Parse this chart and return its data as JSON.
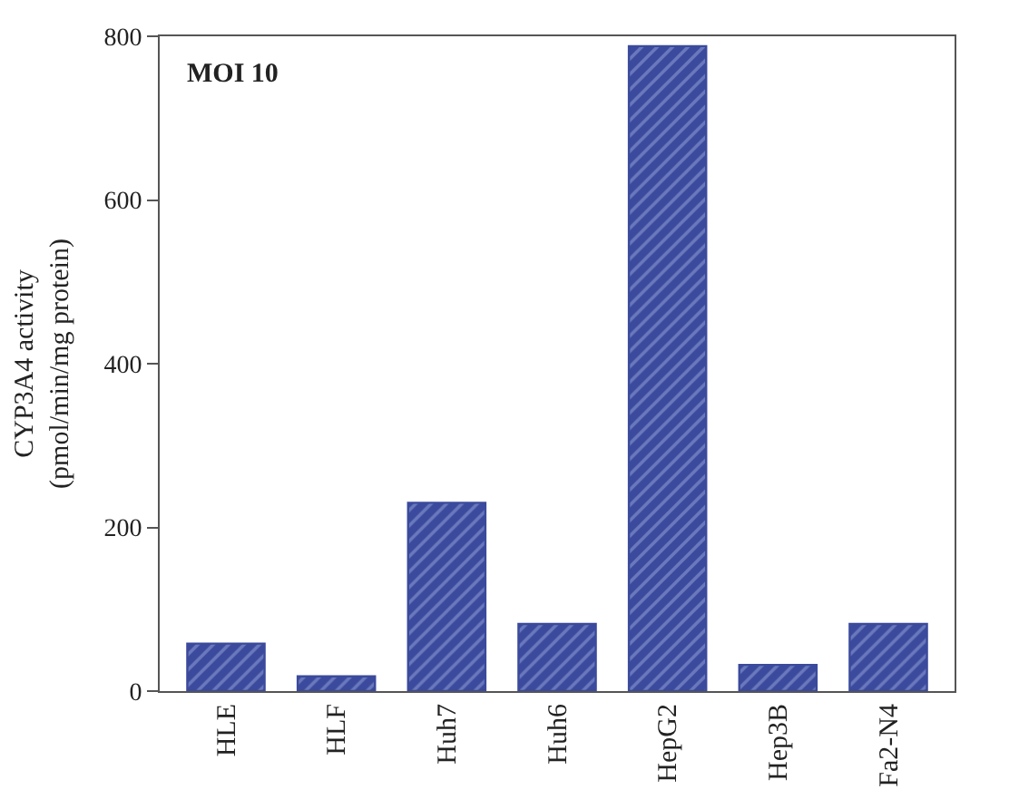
{
  "chart_data": {
    "type": "bar",
    "ylabel": "CYP3A4 activity\n(pmol/min/mg protein)",
    "annotations": [
      "MOI 10"
    ],
    "categories": [
      "HLE",
      "HLF",
      "Huh7",
      "Huh6",
      "HepG2",
      "Hep3B",
      "Fa2-N4"
    ],
    "values": [
      58,
      18,
      230,
      82,
      788,
      32,
      82
    ],
    "color": "#3b4a9c",
    "ylim": [
      0,
      800
    ],
    "yticks": [
      0,
      200,
      400,
      600,
      800
    ]
  }
}
